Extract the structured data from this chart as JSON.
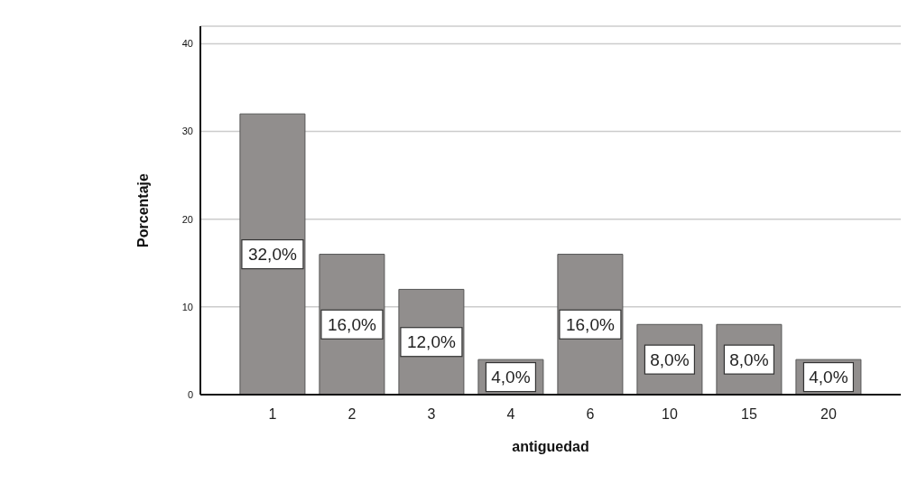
{
  "chart_data": {
    "type": "bar",
    "xlabel": "antiguedad",
    "ylabel": "Porcentaje",
    "categories": [
      "1",
      "2",
      "3",
      "4",
      "6",
      "10",
      "15",
      "20"
    ],
    "values": [
      32,
      16,
      12,
      4,
      16,
      8,
      8,
      4
    ],
    "value_labels": [
      "32,0%",
      "16,0%",
      "12,0%",
      "4,0%",
      "16,0%",
      "8,0%",
      "8,0%",
      "4,0%"
    ],
    "color": "#918e8d",
    "ylim": [
      0,
      42
    ],
    "yticks": [
      0,
      10,
      20,
      30,
      40
    ],
    "grid": "y"
  }
}
